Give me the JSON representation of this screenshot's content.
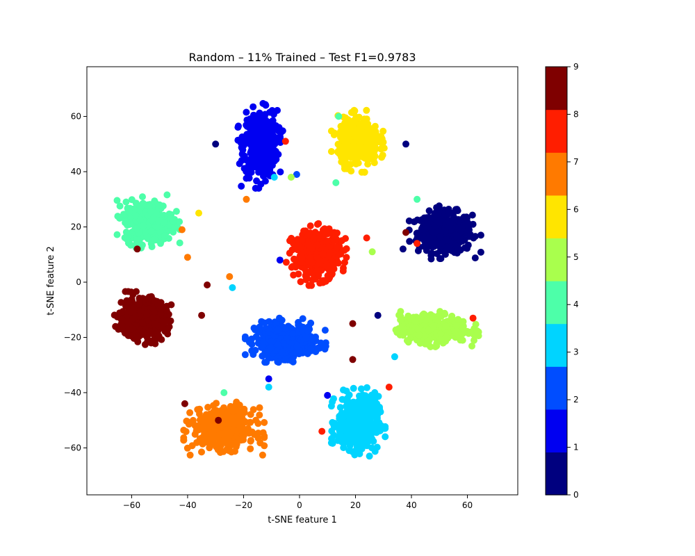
{
  "chart_data": {
    "type": "scatter",
    "title": "Random – 11% Trained – Test F1=0.9783",
    "xlabel": "t-SNE feature 1",
    "ylabel": "t-SNE feature 2",
    "xlim": [
      -76,
      78
    ],
    "ylim": [
      -77,
      78
    ],
    "xticks": [
      -60,
      -40,
      -20,
      0,
      20,
      40,
      60
    ],
    "yticks": [
      -60,
      -40,
      -20,
      0,
      20,
      40,
      60
    ],
    "grid": false,
    "colorbar": {
      "label": "",
      "range": [
        0,
        9
      ],
      "ticks": [
        0,
        1,
        2,
        3,
        4,
        5,
        6,
        7,
        8,
        9
      ],
      "colors": [
        "#00007f",
        "#0000f1",
        "#004dff",
        "#00d4ff",
        "#4dffa9",
        "#a9ff4d",
        "#ffe500",
        "#ff7a00",
        "#ff1e00",
        "#7f0000"
      ]
    },
    "clusters": [
      {
        "class": 0,
        "center": [
          52,
          18
        ],
        "spread": [
          8,
          6
        ],
        "count": 420
      },
      {
        "class": 1,
        "center": [
          -14,
          50
        ],
        "spread": [
          5,
          10
        ],
        "count": 420
      },
      {
        "class": 2,
        "center": [
          -5,
          -21
        ],
        "spread": [
          9,
          5
        ],
        "count": 420
      },
      {
        "class": 3,
        "center": [
          21,
          -51
        ],
        "spread": [
          6,
          8
        ],
        "count": 420
      },
      {
        "class": 4,
        "center": [
          -54,
          22
        ],
        "spread": [
          7,
          6
        ],
        "count": 420
      },
      {
        "class": 5,
        "center": [
          48,
          -17
        ],
        "spread": [
          10,
          4
        ],
        "count": 420
      },
      {
        "class": 6,
        "center": [
          21,
          51
        ],
        "spread": [
          6,
          7
        ],
        "count": 420
      },
      {
        "class": 7,
        "center": [
          -27,
          -53
        ],
        "spread": [
          9,
          6
        ],
        "count": 420
      },
      {
        "class": 8,
        "center": [
          6,
          10
        ],
        "spread": [
          7,
          7
        ],
        "count": 420
      },
      {
        "class": 9,
        "center": [
          -56,
          -13
        ],
        "spread": [
          7,
          6
        ],
        "count": 420
      }
    ],
    "outliers": [
      {
        "class": 9,
        "x": -33,
        "y": -1
      },
      {
        "class": 7,
        "x": -25,
        "y": 2
      },
      {
        "class": 3,
        "x": -24,
        "y": -2
      },
      {
        "class": 8,
        "x": -5,
        "y": 51
      },
      {
        "class": 3,
        "x": -9,
        "y": 38
      },
      {
        "class": 2,
        "x": -1,
        "y": 39
      },
      {
        "class": 1,
        "x": -7,
        "y": 8
      },
      {
        "class": 9,
        "x": 19,
        "y": -15
      },
      {
        "class": 9,
        "x": 19,
        "y": -28
      },
      {
        "class": 1,
        "x": -11,
        "y": -35
      },
      {
        "class": 3,
        "x": -11,
        "y": -38
      },
      {
        "class": 8,
        "x": 8,
        "y": -54
      },
      {
        "class": 1,
        "x": 10,
        "y": -41
      },
      {
        "class": 0,
        "x": 28,
        "y": -12
      },
      {
        "class": 3,
        "x": 34,
        "y": -27
      },
      {
        "class": 8,
        "x": 62,
        "y": -13
      },
      {
        "class": 9,
        "x": 38,
        "y": 18
      },
      {
        "class": 8,
        "x": 42,
        "y": 14
      },
      {
        "class": 4,
        "x": 42,
        "y": 30
      },
      {
        "class": 0,
        "x": 37,
        "y": 12
      },
      {
        "class": 0,
        "x": 38,
        "y": 50
      },
      {
        "class": 4,
        "x": 14,
        "y": 60
      },
      {
        "class": 4,
        "x": 13,
        "y": 36
      },
      {
        "class": 5,
        "x": 26,
        "y": 11
      },
      {
        "class": 8,
        "x": 24,
        "y": 16
      },
      {
        "class": 7,
        "x": -42,
        "y": 19
      },
      {
        "class": 7,
        "x": -40,
        "y": 9
      },
      {
        "class": 6,
        "x": -36,
        "y": 25
      },
      {
        "class": 9,
        "x": -58,
        "y": 12
      },
      {
        "class": 9,
        "x": -35,
        "y": -12
      },
      {
        "class": 0,
        "x": -30,
        "y": 50
      },
      {
        "class": 7,
        "x": -19,
        "y": 30
      },
      {
        "class": 5,
        "x": -3,
        "y": 38
      },
      {
        "class": 8,
        "x": 32,
        "y": -38
      },
      {
        "class": 9,
        "x": -29,
        "y": -50
      },
      {
        "class": 9,
        "x": -41,
        "y": -44
      },
      {
        "class": 4,
        "x": -27,
        "y": -40
      }
    ]
  }
}
